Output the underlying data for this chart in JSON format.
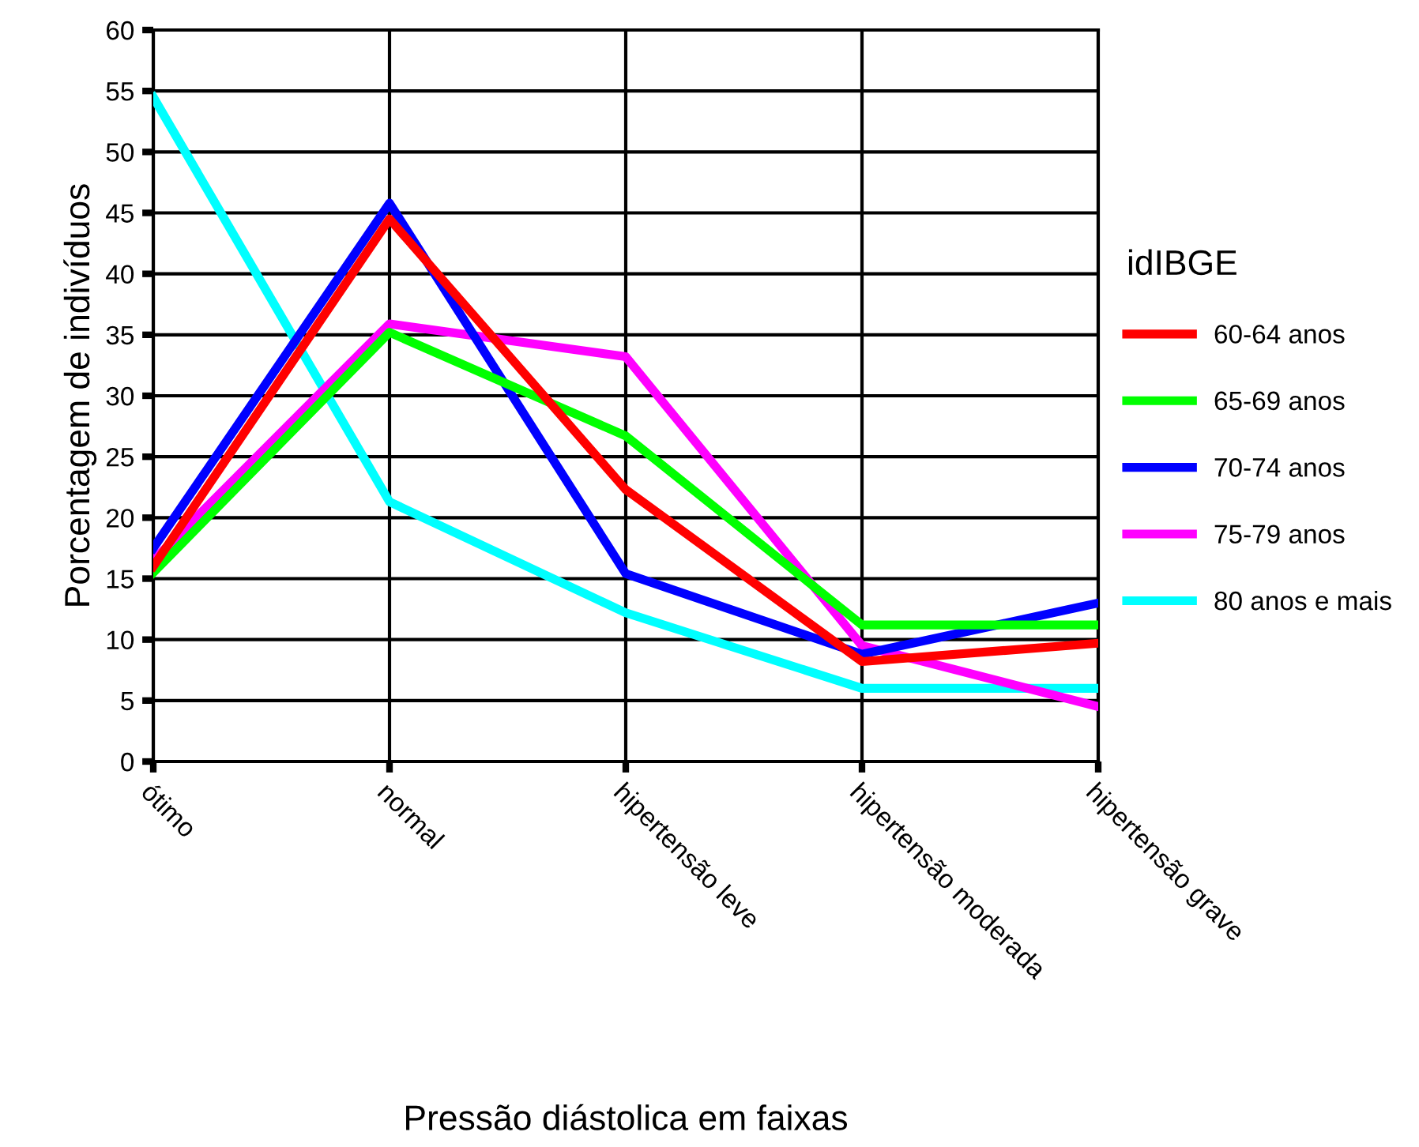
{
  "chart_data": {
    "type": "line",
    "xlabel": "Pressão diástolica em faixas",
    "ylabel": "Porcentagem de indivíduos",
    "legend_title": "idIBGE",
    "categories": [
      "ótimo",
      "normal",
      "hipertensão leve",
      "hipertensão moderada",
      "hipertensão grave"
    ],
    "series": [
      {
        "name": "60-64 anos",
        "color": "#ff0000",
        "values": [
          16.0,
          44.5,
          22.3,
          8.2,
          9.7
        ]
      },
      {
        "name": "65-69 anos",
        "color": "#00ff00",
        "values": [
          15.5,
          35.2,
          26.7,
          11.2,
          11.2
        ]
      },
      {
        "name": "70-74 anos",
        "color": "#0000ff",
        "values": [
          17.5,
          45.8,
          15.4,
          8.8,
          13.0
        ]
      },
      {
        "name": "75-79 anos",
        "color": "#ff00ff",
        "values": [
          16.5,
          35.9,
          33.2,
          9.5,
          4.5
        ]
      },
      {
        "name": "80 anos e mais",
        "color": "#00ffff",
        "values": [
          54.5,
          21.3,
          12.2,
          6.0,
          6.0
        ]
      }
    ],
    "ylim": [
      0,
      60
    ],
    "yticks": [
      0,
      5,
      10,
      15,
      20,
      25,
      30,
      35,
      40,
      45,
      50,
      55,
      60
    ],
    "grid": true,
    "legend": "right",
    "marker": "none",
    "line_style": "solid"
  }
}
